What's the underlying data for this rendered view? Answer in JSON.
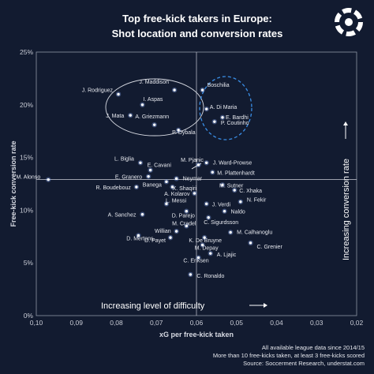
{
  "title_line1": "Top free-kick takers in Europe:",
  "title_line2": "Shot location and conversion rates",
  "footer": [
    "All available league data since 2014/15",
    "More than 10 free-kicks taken, at least 3 free-kicks scored",
    "Source: Soccerment Research, understat.com"
  ],
  "colors": {
    "background": "#121b30",
    "point": "#8fb3ff",
    "circle_left": "#d8dbe3",
    "circle_right": "#3a8ee6"
  },
  "chart_data": {
    "type": "scatter",
    "xlabel": "xG per free-kick taken",
    "ylabel": "Free-kick conversion rate",
    "xlim": [
      0.1,
      0.02
    ],
    "ylim": [
      0,
      25
    ],
    "x_reversed": true,
    "xticks": [
      "0,10",
      "0,09",
      "0,08",
      "0,07",
      "0,06",
      "0,05",
      "0,04",
      "0,03",
      "0,02"
    ],
    "yticks": [
      "0%",
      "5%",
      "10%",
      "15%",
      "20%",
      "25%"
    ],
    "crosshair": {
      "x": 0.06,
      "y": 12.9
    },
    "annotations": {
      "bottom": "Increasing level of difficulty",
      "right": "Increasing conversion rate"
    },
    "points": [
      {
        "name": "J. Rodriguez",
        "x": 0.0795,
        "y": 21.0
      },
      {
        "name": "J. Maddison",
        "x": 0.0655,
        "y": 21.4
      },
      {
        "name": "I. Aspas",
        "x": 0.0735,
        "y": 20.0
      },
      {
        "name": "J. Mata",
        "x": 0.0765,
        "y": 19.0
      },
      {
        "name": "A. Griezmann",
        "x": 0.0705,
        "y": 18.1
      },
      {
        "name": "P. Dybala",
        "x": 0.0645,
        "y": 17.6
      },
      {
        "name": "Boschilia",
        "x": 0.0585,
        "y": 21.4
      },
      {
        "name": "A. Di Maria",
        "x": 0.0575,
        "y": 19.6
      },
      {
        "name": "E. Bardhi",
        "x": 0.0535,
        "y": 18.8
      },
      {
        "name": "P. Coutinho",
        "x": 0.0555,
        "y": 18.4
      },
      {
        "name": "L. Biglia",
        "x": 0.074,
        "y": 14.5
      },
      {
        "name": "E. Cavani",
        "x": 0.0715,
        "y": 13.8
      },
      {
        "name": "E. Granero",
        "x": 0.072,
        "y": 13.2
      },
      {
        "name": "Banega",
        "x": 0.0675,
        "y": 12.7
      },
      {
        "name": "Neymar",
        "x": 0.065,
        "y": 13.0
      },
      {
        "name": "R. Boudebouz",
        "x": 0.075,
        "y": 12.2
      },
      {
        "name": "X. Shaqiri",
        "x": 0.066,
        "y": 12.2
      },
      {
        "name": "M. Pjanic",
        "x": 0.0595,
        "y": 14.3
      },
      {
        "name": "J. Ward-Prowse",
        "x": 0.0575,
        "y": 14.5
      },
      {
        "name": "M. Plattenhardt",
        "x": 0.056,
        "y": 13.6
      },
      {
        "name": "M. Sutner",
        "x": 0.0535,
        "y": 12.4
      },
      {
        "name": "C. Xhaka",
        "x": 0.0505,
        "y": 11.9
      },
      {
        "name": "A. Kolarov",
        "x": 0.0605,
        "y": 11.6
      },
      {
        "name": "M. Alonso",
        "x": 0.097,
        "y": 12.9
      },
      {
        "name": "L. Messi",
        "x": 0.0675,
        "y": 10.6
      },
      {
        "name": "J. Verdi",
        "x": 0.0575,
        "y": 10.6
      },
      {
        "name": "N. Fekir",
        "x": 0.049,
        "y": 10.8
      },
      {
        "name": "A. Sanchez",
        "x": 0.0735,
        "y": 9.6
      },
      {
        "name": "D. Parejo",
        "x": 0.0625,
        "y": 9.9
      },
      {
        "name": "Naldo",
        "x": 0.053,
        "y": 9.9
      },
      {
        "name": "C. Sigurdsson",
        "x": 0.057,
        "y": 9.3
      },
      {
        "name": "M. Cradel",
        "x": 0.0625,
        "y": 8.5
      },
      {
        "name": "Willian",
        "x": 0.065,
        "y": 8.0
      },
      {
        "name": "D. Mertens",
        "x": 0.0745,
        "y": 7.6
      },
      {
        "name": "D. Payet",
        "x": 0.0665,
        "y": 7.4
      },
      {
        "name": "K. De Bruyne",
        "x": 0.058,
        "y": 7.4
      },
      {
        "name": "M. Calhanoglu",
        "x": 0.0515,
        "y": 7.9
      },
      {
        "name": "M. Depay",
        "x": 0.0585,
        "y": 6.7
      },
      {
        "name": "C. Grenier",
        "x": 0.0465,
        "y": 6.9
      },
      {
        "name": "A. Ljajic",
        "x": 0.0565,
        "y": 5.9
      },
      {
        "name": "C. Eriksen",
        "x": 0.0595,
        "y": 5.5
      },
      {
        "name": "C. Ronaldo",
        "x": 0.0615,
        "y": 3.9
      }
    ]
  }
}
